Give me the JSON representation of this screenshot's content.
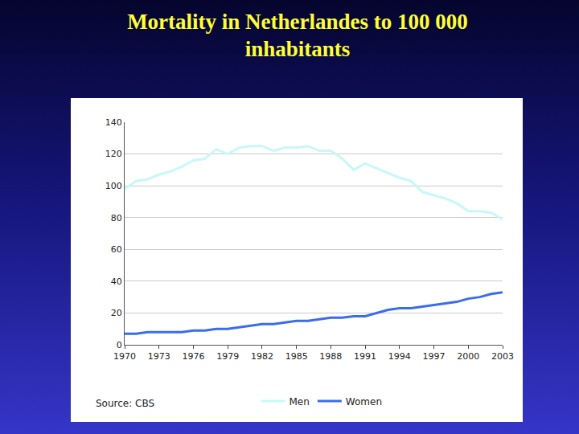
{
  "chart_data": {
    "type": "line",
    "title": "Mortality in Netherlandes to 100 000 inhabitants",
    "x": [
      1970,
      1971,
      1972,
      1973,
      1974,
      1975,
      1976,
      1977,
      1978,
      1979,
      1980,
      1981,
      1982,
      1983,
      1984,
      1985,
      1986,
      1987,
      1988,
      1989,
      1990,
      1991,
      1992,
      1993,
      1994,
      1995,
      1996,
      1997,
      1998,
      1999,
      2000,
      2001,
      2002,
      2003
    ],
    "series": [
      {
        "name": "Men",
        "color": "#c8f8f8",
        "values": [
          98,
          103,
          104,
          107,
          109,
          112,
          116,
          117,
          123,
          120,
          124,
          125,
          125,
          122,
          124,
          124,
          125,
          122,
          122,
          117,
          110,
          114,
          111,
          108,
          105,
          103,
          96,
          94,
          92,
          89,
          84,
          84,
          83,
          79
        ]
      },
      {
        "name": "Women",
        "color": "#3a6cf0",
        "values": [
          7,
          7,
          8,
          8,
          8,
          8,
          9,
          9,
          10,
          10,
          11,
          12,
          13,
          13,
          14,
          15,
          15,
          16,
          17,
          17,
          18,
          18,
          20,
          22,
          23,
          23,
          24,
          25,
          26,
          27,
          29,
          30,
          32,
          33
        ]
      }
    ],
    "xlim": [
      1970,
      2003
    ],
    "xticks": [
      1970,
      1973,
      1976,
      1979,
      1982,
      1985,
      1988,
      1991,
      1994,
      1997,
      2000,
      2003
    ],
    "ylim": [
      0,
      140
    ],
    "yticks": [
      0,
      20,
      40,
      60,
      80,
      100,
      120,
      140
    ],
    "grid": true,
    "legend": "bottom",
    "annotations": [
      "Source: CBS"
    ]
  }
}
